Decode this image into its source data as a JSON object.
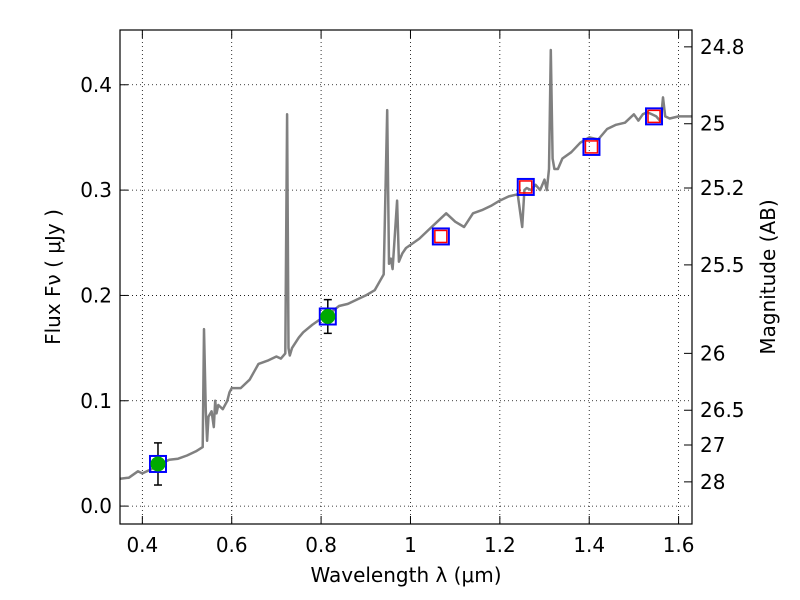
{
  "chart_data": {
    "type": "line",
    "xlabel": "Wavelength  λ (μm)",
    "ylabel": "Flux  Fν  ( μJy )",
    "ylabel_right": "Magnitude (AB)",
    "xlim": [
      0.35,
      1.63
    ],
    "ylim": [
      -0.017,
      0.452
    ],
    "grid": true,
    "x_ticks": [
      0.4,
      0.6,
      0.8,
      1.0,
      1.2,
      1.4,
      1.6
    ],
    "x_tick_labels": [
      "0.4",
      "0.6",
      "0.8",
      "1",
      "1.2",
      "1.4",
      "1.6"
    ],
    "y_ticks": [
      0.0,
      0.1,
      0.2,
      0.3,
      0.4
    ],
    "y_tick_labels": [
      "0.0",
      "0.1",
      "0.2",
      "0.3",
      "0.4"
    ],
    "right_ticks": [
      {
        "label": "24.8",
        "flux": 0.436
      },
      {
        "label": "25",
        "flux": 0.363
      },
      {
        "label": "25.2",
        "flux": 0.302
      },
      {
        "label": "25.5",
        "flux": 0.229
      },
      {
        "label": "26",
        "flux": 0.145
      },
      {
        "label": "26.5",
        "flux": 0.091
      },
      {
        "label": "27",
        "flux": 0.058
      },
      {
        "label": "28",
        "flux": 0.023
      }
    ],
    "series": [
      {
        "kind": "spectrum",
        "color": "#808080",
        "x": [
          0.35,
          0.37,
          0.39,
          0.4,
          0.42,
          0.44,
          0.46,
          0.48,
          0.5,
          0.52,
          0.535,
          0.538,
          0.542,
          0.545,
          0.548,
          0.555,
          0.56,
          0.563,
          0.566,
          0.57,
          0.58,
          0.59,
          0.595,
          0.6,
          0.62,
          0.64,
          0.66,
          0.68,
          0.7,
          0.71,
          0.72,
          0.724,
          0.727,
          0.73,
          0.735,
          0.75,
          0.76,
          0.78,
          0.8,
          0.82,
          0.84,
          0.86,
          0.88,
          0.9,
          0.92,
          0.94,
          0.948,
          0.952,
          0.956,
          0.96,
          0.97,
          0.974,
          0.978,
          0.982,
          0.99,
          1.0,
          1.02,
          1.04,
          1.06,
          1.08,
          1.1,
          1.12,
          1.14,
          1.16,
          1.18,
          1.2,
          1.22,
          1.24,
          1.25,
          1.255,
          1.26,
          1.27,
          1.28,
          1.29,
          1.3,
          1.305,
          1.31,
          1.314,
          1.318,
          1.322,
          1.33,
          1.34,
          1.36,
          1.38,
          1.4,
          1.42,
          1.44,
          1.46,
          1.48,
          1.5,
          1.51,
          1.52,
          1.53,
          1.54,
          1.55,
          1.56,
          1.565,
          1.57,
          1.58,
          1.6,
          1.63
        ],
        "y": [
          0.026,
          0.027,
          0.033,
          0.031,
          0.035,
          0.04,
          0.044,
          0.045,
          0.048,
          0.052,
          0.056,
          0.168,
          0.09,
          0.062,
          0.085,
          0.09,
          0.075,
          0.1,
          0.088,
          0.096,
          0.092,
          0.1,
          0.108,
          0.112,
          0.112,
          0.12,
          0.135,
          0.138,
          0.142,
          0.14,
          0.145,
          0.372,
          0.15,
          0.143,
          0.15,
          0.16,
          0.165,
          0.172,
          0.178,
          0.183,
          0.19,
          0.192,
          0.196,
          0.2,
          0.205,
          0.22,
          0.376,
          0.23,
          0.235,
          0.225,
          0.29,
          0.232,
          0.236,
          0.24,
          0.245,
          0.248,
          0.254,
          0.262,
          0.27,
          0.278,
          0.27,
          0.265,
          0.278,
          0.281,
          0.285,
          0.29,
          0.294,
          0.296,
          0.265,
          0.3,
          0.302,
          0.3,
          0.305,
          0.3,
          0.31,
          0.3,
          0.32,
          0.433,
          0.33,
          0.32,
          0.32,
          0.33,
          0.336,
          0.345,
          0.35,
          0.348,
          0.358,
          0.362,
          0.364,
          0.372,
          0.366,
          0.372,
          0.374,
          0.372,
          0.37,
          0.365,
          0.388,
          0.37,
          0.368,
          0.37,
          0.37
        ]
      },
      {
        "kind": "model_points",
        "marker": "square",
        "edge_color": "#0000ff",
        "x": [
          0.435,
          0.815,
          1.068,
          1.258,
          1.405,
          1.545
        ],
        "y": [
          0.04,
          0.18,
          0.256,
          0.303,
          0.341,
          0.37
        ]
      },
      {
        "kind": "upper_limits",
        "marker": "square",
        "edge_color": "#ff0000",
        "x": [
          1.068,
          1.258,
          1.405,
          1.545
        ],
        "y": [
          0.256,
          0.303,
          0.341,
          0.37
        ]
      },
      {
        "kind": "detections",
        "marker": "circle",
        "color": "#00aa00",
        "x": [
          0.435,
          0.815
        ],
        "y": [
          0.04,
          0.18
        ],
        "yerr": [
          0.02,
          0.016
        ]
      }
    ]
  }
}
